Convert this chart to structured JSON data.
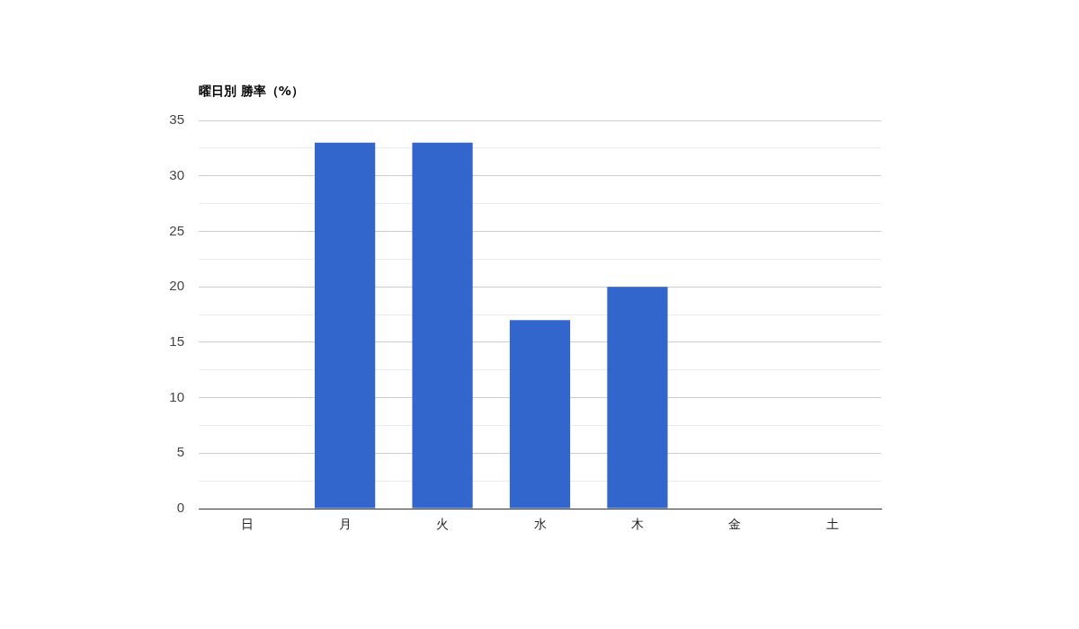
{
  "chart_data": {
    "type": "bar",
    "title": "曜日別 勝率（%）",
    "categories": [
      "日",
      "月",
      "火",
      "水",
      "木",
      "金",
      "土"
    ],
    "values": [
      0,
      33,
      33,
      17,
      20,
      0,
      0
    ],
    "color": "#3366cc",
    "ylim": [
      0,
      35
    ],
    "yticks": [
      0,
      {
        "value": 2.5,
        "label": null
      },
      5,
      {
        "value": 7.5,
        "label": null
      },
      10,
      {
        "value": 12.5,
        "label": null
      },
      15,
      {
        "value": 17.5,
        "label": null
      },
      20,
      {
        "value": 22.5,
        "label": null
      },
      25,
      {
        "value": 27.5,
        "label": null
      },
      30,
      {
        "value": 32.5,
        "label": null
      },
      35
    ],
    "grid": "y",
    "legend": false
  }
}
